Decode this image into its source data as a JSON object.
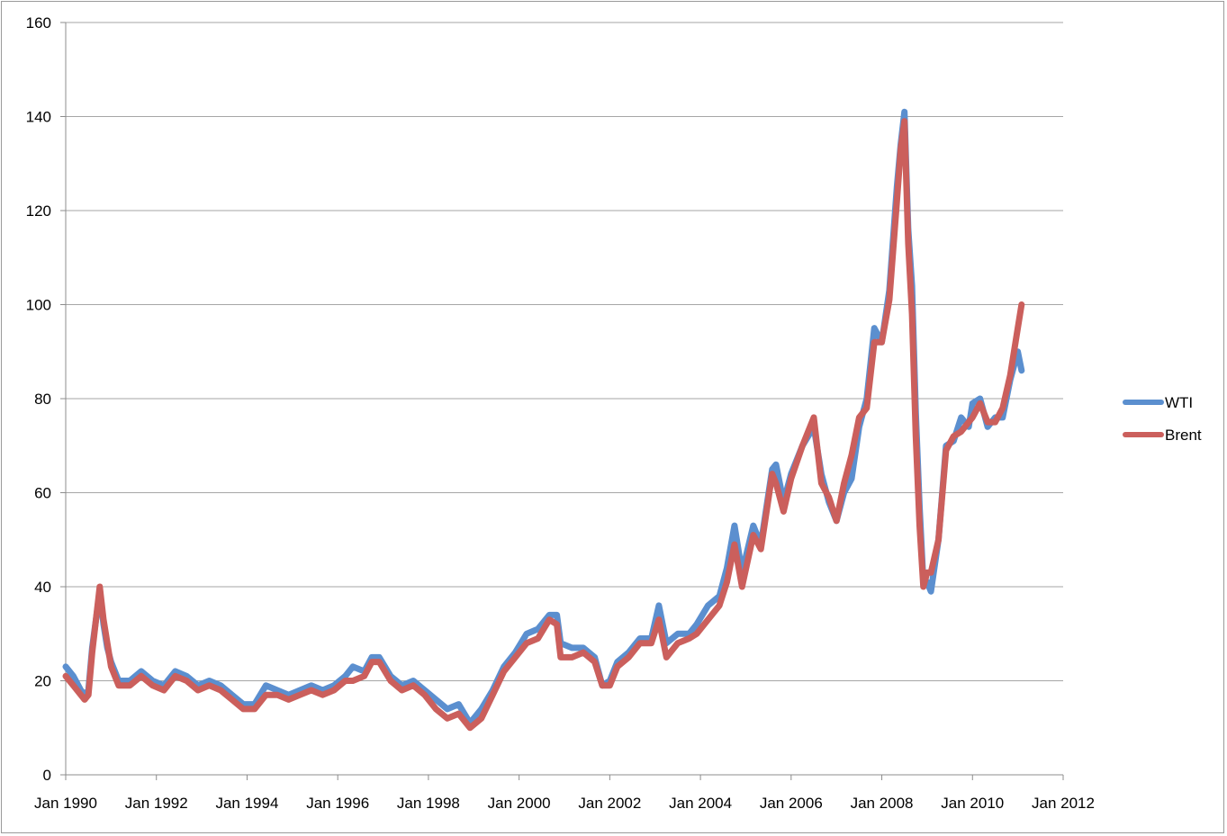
{
  "chart_data": {
    "type": "line",
    "title": "",
    "xlabel": "",
    "ylabel": "",
    "ylim": [
      0,
      160
    ],
    "yticks": [
      0,
      20,
      40,
      60,
      80,
      100,
      120,
      140,
      160
    ],
    "xlim": [
      "1990-01",
      "2012-01"
    ],
    "xticks": [
      "Jan 1990",
      "Jan 1992",
      "Jan 1994",
      "Jan 1996",
      "Jan 1998",
      "Jan 2000",
      "Jan 2002",
      "Jan 2004",
      "Jan 2006",
      "Jan 2008",
      "Jan 2010",
      "Jan 2012"
    ],
    "grid": "horizontal",
    "legend": "right",
    "series": [
      {
        "name": "WTI",
        "color": "#5b8fcf",
        "points": [
          [
            "1990-01",
            23
          ],
          [
            "1990-03",
            21
          ],
          [
            "1990-05",
            18
          ],
          [
            "1990-06",
            17
          ],
          [
            "1990-07",
            18
          ],
          [
            "1990-08",
            27
          ],
          [
            "1990-09",
            33
          ],
          [
            "1990-10",
            39
          ],
          [
            "1990-11",
            32
          ],
          [
            "1990-12",
            27
          ],
          [
            "1991-01",
            24
          ],
          [
            "1991-03",
            20
          ],
          [
            "1991-06",
            20
          ],
          [
            "1991-09",
            22
          ],
          [
            "1991-12",
            20
          ],
          [
            "1992-03",
            19
          ],
          [
            "1992-06",
            22
          ],
          [
            "1992-09",
            21
          ],
          [
            "1992-12",
            19
          ],
          [
            "1993-03",
            20
          ],
          [
            "1993-06",
            19
          ],
          [
            "1993-09",
            17
          ],
          [
            "1993-12",
            15
          ],
          [
            "1994-03",
            15
          ],
          [
            "1994-06",
            19
          ],
          [
            "1994-09",
            18
          ],
          [
            "1994-12",
            17
          ],
          [
            "1995-03",
            18
          ],
          [
            "1995-06",
            19
          ],
          [
            "1995-09",
            18
          ],
          [
            "1995-12",
            19
          ],
          [
            "1996-03",
            21
          ],
          [
            "1996-05",
            23
          ],
          [
            "1996-08",
            22
          ],
          [
            "1996-10",
            25
          ],
          [
            "1996-12",
            25
          ],
          [
            "1997-03",
            21
          ],
          [
            "1997-06",
            19
          ],
          [
            "1997-09",
            20
          ],
          [
            "1997-12",
            18
          ],
          [
            "1998-03",
            16
          ],
          [
            "1998-06",
            14
          ],
          [
            "1998-09",
            15
          ],
          [
            "1998-12",
            11
          ],
          [
            "1999-03",
            14
          ],
          [
            "1999-06",
            18
          ],
          [
            "1999-09",
            23
          ],
          [
            "1999-12",
            26
          ],
          [
            "2000-03",
            30
          ],
          [
            "2000-06",
            31
          ],
          [
            "2000-09",
            34
          ],
          [
            "2000-11",
            34
          ],
          [
            "2000-12",
            28
          ],
          [
            "2001-03",
            27
          ],
          [
            "2001-06",
            27
          ],
          [
            "2001-09",
            25
          ],
          [
            "2001-11",
            19
          ],
          [
            "2002-01",
            20
          ],
          [
            "2002-03",
            24
          ],
          [
            "2002-06",
            26
          ],
          [
            "2002-09",
            29
          ],
          [
            "2002-12",
            29
          ],
          [
            "2003-02",
            36
          ],
          [
            "2003-04",
            28
          ],
          [
            "2003-07",
            30
          ],
          [
            "2003-10",
            30
          ],
          [
            "2003-12",
            32
          ],
          [
            "2004-03",
            36
          ],
          [
            "2004-06",
            38
          ],
          [
            "2004-08",
            44
          ],
          [
            "2004-10",
            53
          ],
          [
            "2004-12",
            43
          ],
          [
            "2005-03",
            53
          ],
          [
            "2005-05",
            49
          ],
          [
            "2005-08",
            65
          ],
          [
            "2005-09",
            66
          ],
          [
            "2005-11",
            58
          ],
          [
            "2006-01",
            64
          ],
          [
            "2006-04",
            70
          ],
          [
            "2006-07",
            74
          ],
          [
            "2006-09",
            64
          ],
          [
            "2006-11",
            58
          ],
          [
            "2007-01",
            54
          ],
          [
            "2007-03",
            60
          ],
          [
            "2007-05",
            63
          ],
          [
            "2007-07",
            74
          ],
          [
            "2007-09",
            80
          ],
          [
            "2007-11",
            95
          ],
          [
            "2008-01",
            92
          ],
          [
            "2008-03",
            103
          ],
          [
            "2008-05",
            125
          ],
          [
            "2008-06",
            134
          ],
          [
            "2008-07",
            141
          ],
          [
            "2008-08",
            116
          ],
          [
            "2008-09",
            104
          ],
          [
            "2008-10",
            77
          ],
          [
            "2008-11",
            57
          ],
          [
            "2008-12",
            41
          ],
          [
            "2009-01",
            41
          ],
          [
            "2009-02",
            39
          ],
          [
            "2009-04",
            50
          ],
          [
            "2009-06",
            70
          ],
          [
            "2009-08",
            71
          ],
          [
            "2009-10",
            76
          ],
          [
            "2009-12",
            74
          ],
          [
            "2010-01",
            79
          ],
          [
            "2010-03",
            80
          ],
          [
            "2010-05",
            74
          ],
          [
            "2010-07",
            76
          ],
          [
            "2010-09",
            76
          ],
          [
            "2010-11",
            84
          ],
          [
            "2011-01",
            90
          ],
          [
            "2011-02",
            86
          ]
        ]
      },
      {
        "name": "Brent",
        "color": "#cb5f5c",
        "points": [
          [
            "1990-01",
            21
          ],
          [
            "1990-03",
            19
          ],
          [
            "1990-05",
            17
          ],
          [
            "1990-06",
            16
          ],
          [
            "1990-07",
            17
          ],
          [
            "1990-08",
            26
          ],
          [
            "1990-09",
            33
          ],
          [
            "1990-10",
            40
          ],
          [
            "1990-11",
            33
          ],
          [
            "1990-12",
            28
          ],
          [
            "1991-01",
            23
          ],
          [
            "1991-03",
            19
          ],
          [
            "1991-06",
            19
          ],
          [
            "1991-09",
            21
          ],
          [
            "1991-12",
            19
          ],
          [
            "1992-03",
            18
          ],
          [
            "1992-06",
            21
          ],
          [
            "1992-09",
            20
          ],
          [
            "1992-12",
            18
          ],
          [
            "1993-03",
            19
          ],
          [
            "1993-06",
            18
          ],
          [
            "1993-09",
            16
          ],
          [
            "1993-12",
            14
          ],
          [
            "1994-03",
            14
          ],
          [
            "1994-06",
            17
          ],
          [
            "1994-09",
            17
          ],
          [
            "1994-12",
            16
          ],
          [
            "1995-03",
            17
          ],
          [
            "1995-06",
            18
          ],
          [
            "1995-09",
            17
          ],
          [
            "1995-12",
            18
          ],
          [
            "1996-03",
            20
          ],
          [
            "1996-05",
            20
          ],
          [
            "1996-08",
            21
          ],
          [
            "1996-10",
            24
          ],
          [
            "1996-12",
            24
          ],
          [
            "1997-03",
            20
          ],
          [
            "1997-06",
            18
          ],
          [
            "1997-09",
            19
          ],
          [
            "1997-12",
            17
          ],
          [
            "1998-03",
            14
          ],
          [
            "1998-06",
            12
          ],
          [
            "1998-09",
            13
          ],
          [
            "1998-12",
            10
          ],
          [
            "1999-03",
            12
          ],
          [
            "1999-06",
            17
          ],
          [
            "1999-09",
            22
          ],
          [
            "1999-12",
            25
          ],
          [
            "2000-03",
            28
          ],
          [
            "2000-06",
            29
          ],
          [
            "2000-09",
            33
          ],
          [
            "2000-11",
            32
          ],
          [
            "2000-12",
            25
          ],
          [
            "2001-03",
            25
          ],
          [
            "2001-06",
            26
          ],
          [
            "2001-09",
            24
          ],
          [
            "2001-11",
            19
          ],
          [
            "2002-01",
            19
          ],
          [
            "2002-03",
            23
          ],
          [
            "2002-06",
            25
          ],
          [
            "2002-09",
            28
          ],
          [
            "2002-12",
            28
          ],
          [
            "2003-02",
            33
          ],
          [
            "2003-04",
            25
          ],
          [
            "2003-07",
            28
          ],
          [
            "2003-10",
            29
          ],
          [
            "2003-12",
            30
          ],
          [
            "2004-03",
            33
          ],
          [
            "2004-06",
            36
          ],
          [
            "2004-08",
            41
          ],
          [
            "2004-10",
            49
          ],
          [
            "2004-12",
            40
          ],
          [
            "2005-03",
            51
          ],
          [
            "2005-05",
            48
          ],
          [
            "2005-08",
            64
          ],
          [
            "2005-09",
            62
          ],
          [
            "2005-11",
            56
          ],
          [
            "2006-01",
            63
          ],
          [
            "2006-04",
            70
          ],
          [
            "2006-07",
            76
          ],
          [
            "2006-09",
            62
          ],
          [
            "2006-11",
            59
          ],
          [
            "2007-01",
            54
          ],
          [
            "2007-03",
            62
          ],
          [
            "2007-05",
            68
          ],
          [
            "2007-07",
            76
          ],
          [
            "2007-09",
            78
          ],
          [
            "2007-11",
            92
          ],
          [
            "2008-01",
            92
          ],
          [
            "2008-03",
            101
          ],
          [
            "2008-05",
            122
          ],
          [
            "2008-06",
            133
          ],
          [
            "2008-07",
            139
          ],
          [
            "2008-08",
            113
          ],
          [
            "2008-09",
            98
          ],
          [
            "2008-10",
            72
          ],
          [
            "2008-11",
            53
          ],
          [
            "2008-12",
            40
          ],
          [
            "2009-01",
            43
          ],
          [
            "2009-02",
            43
          ],
          [
            "2009-04",
            50
          ],
          [
            "2009-06",
            69
          ],
          [
            "2009-08",
            72
          ],
          [
            "2009-10",
            73
          ],
          [
            "2009-12",
            75
          ],
          [
            "2010-01",
            76
          ],
          [
            "2010-03",
            79
          ],
          [
            "2010-05",
            75
          ],
          [
            "2010-07",
            75
          ],
          [
            "2010-09",
            78
          ],
          [
            "2010-11",
            85
          ],
          [
            "2011-01",
            95
          ],
          [
            "2011-02",
            100
          ]
        ]
      }
    ]
  }
}
